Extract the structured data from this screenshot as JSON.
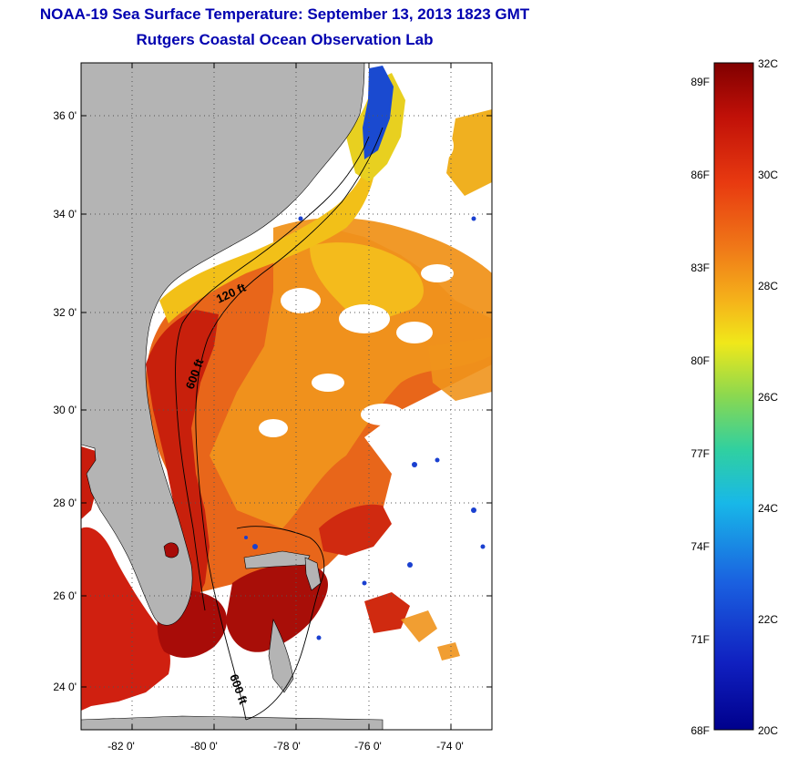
{
  "title": {
    "line1": "NOAA-19 Sea Surface Temperature:  September 13, 2013 1823 GMT",
    "line2": "Rutgers Coastal Ocean Observation Lab"
  },
  "map": {
    "lat_ticks": [
      "36 0'",
      "34 0'",
      "32 0'",
      "30 0'",
      "28 0'",
      "26 0'",
      "24 0'"
    ],
    "lon_ticks": [
      "-82 0'",
      "-80 0'",
      "-78 0'",
      "-76 0'",
      "-74 0'"
    ],
    "contour_labels": [
      "120 ft",
      "600 ft",
      "600 ft"
    ]
  },
  "colorbar": {
    "celsius_labels": [
      "32C",
      "30C",
      "28C",
      "26C",
      "24C",
      "22C",
      "20C"
    ],
    "fahrenheit_labels": [
      "89F",
      "86F",
      "83F",
      "80F",
      "77F",
      "74F",
      "71F",
      "68F"
    ]
  },
  "colors": {
    "title": "#0000b0",
    "land": "#b4b4b4",
    "warm": "#d62a10",
    "hot": "#a01008",
    "orange": "#f08a1a",
    "yellow": "#f0d81a",
    "cold": "#1a40d0"
  }
}
